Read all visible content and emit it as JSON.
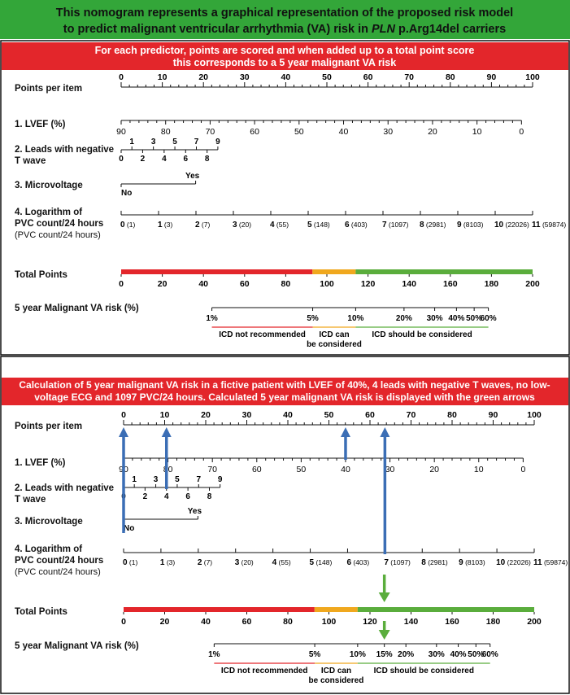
{
  "header": {
    "title_line1": "This nomogram represents a graphical representation of the proposed risk model",
    "title_line2_pre": "to predict malignant ventricular arrhythmia (VA) risk in ",
    "title_line2_em": "PLN",
    "title_line2_post": " p.Arg14del carriers",
    "bg_color": "#33a639"
  },
  "panel1": {
    "banner_line1": "For each predictor, points are scored and when added up to a total point score",
    "banner_line2": "this corresponds to a 5 year malignant VA risk",
    "banner_color": "#e3262b"
  },
  "panel2": {
    "banner_line1": "Calculation of 5 year malignant VA risk in a fictive patient with LVEF of 40%, 4 leads with negative T waves, no low-",
    "banner_line2": "voltage ECG and 1097 PVC/24 hours. Calculated 5 year malignant VA risk is displayed with the green arrows",
    "banner_color": "#e3262b"
  },
  "labels": {
    "points": "Points per item",
    "lvef": "1. LVEF (%)",
    "leads_1": "2. Leads with negative",
    "leads_2": "T wave",
    "micro": "3. Microvoltage",
    "pvc_1": "4. Logarithm of",
    "pvc_2": "PVC count/24 hours",
    "pvc_3": "(PVC count/24 hours)",
    "total": "Total Points",
    "risk": "5 year Malignant VA risk (%)"
  },
  "scales": {
    "points": {
      "min": 0,
      "max": 100,
      "labels": [
        "0",
        "10",
        "20",
        "30",
        "40",
        "50",
        "60",
        "70",
        "80",
        "90",
        "100"
      ]
    },
    "lvef": {
      "labels": [
        "90",
        "80",
        "70",
        "60",
        "50",
        "40",
        "30",
        "20",
        "10",
        "0"
      ]
    },
    "leads_odd": [
      "1",
      "3",
      "5",
      "7",
      "9"
    ],
    "leads_even": [
      "0",
      "2",
      "4",
      "6",
      "8"
    ],
    "micro": {
      "yes": "Yes",
      "no": "No"
    },
    "pvc": [
      {
        "v": "0",
        "n": "(1)"
      },
      {
        "v": "1",
        "n": "(3)"
      },
      {
        "v": "2",
        "n": "(7)"
      },
      {
        "v": "3",
        "n": "(20)"
      },
      {
        "v": "4",
        "n": "(55)"
      },
      {
        "v": "5",
        "n": "(148)"
      },
      {
        "v": "6",
        "n": "(403)"
      },
      {
        "v": "7",
        "n": "(1097)"
      },
      {
        "v": "8",
        "n": "(2981)"
      },
      {
        "v": "9",
        "n": "(8103)"
      },
      {
        "v": "10",
        "n": "(22026)"
      },
      {
        "v": "11",
        "n": "(59874)"
      }
    ],
    "total": {
      "min": 0,
      "max": 200,
      "labels": [
        "0",
        "20",
        "40",
        "60",
        "80",
        "100",
        "120",
        "140",
        "160",
        "180",
        "200"
      ]
    },
    "risk1": [
      {
        "label": "1%",
        "at": 44.1
      },
      {
        "label": "5%",
        "at": 93.1
      },
      {
        "label": "10%",
        "at": 114
      },
      {
        "label": "20%",
        "at": 137.5
      },
      {
        "label": "30%",
        "at": 152.4
      },
      {
        "label": "40%",
        "at": 163
      },
      {
        "label": "50%",
        "at": 171.6
      },
      {
        "label": "60%",
        "at": 178.5
      }
    ],
    "risk2": [
      {
        "label": "1%",
        "at": 44.1
      },
      {
        "label": "5%",
        "at": 93.1
      },
      {
        "label": "10%",
        "at": 114
      },
      {
        "label": "15%",
        "at": 127
      },
      {
        "label": "20%",
        "at": 137.5
      },
      {
        "label": "30%",
        "at": 152.4
      },
      {
        "label": "40%",
        "at": 163
      },
      {
        "label": "50%",
        "at": 171.6
      },
      {
        "label": "60%",
        "at": 178.5
      }
    ]
  },
  "zones": {
    "red": "ICD not recommended",
    "orange_1": "ICD can",
    "orange_2": "be considered",
    "green": "ICD should be considered"
  },
  "colors": {
    "zone_red": "#e3262b",
    "zone_orange": "#f0a81e",
    "zone_green": "#5aad3c",
    "arrow_blue": "#3b6eb5",
    "arrow_green": "#5aad3c"
  },
  "example": {
    "lvef": 40,
    "leads": 4,
    "micro": "No",
    "pvc_log": 7,
    "total_points": 127,
    "risk_label": "15%"
  }
}
